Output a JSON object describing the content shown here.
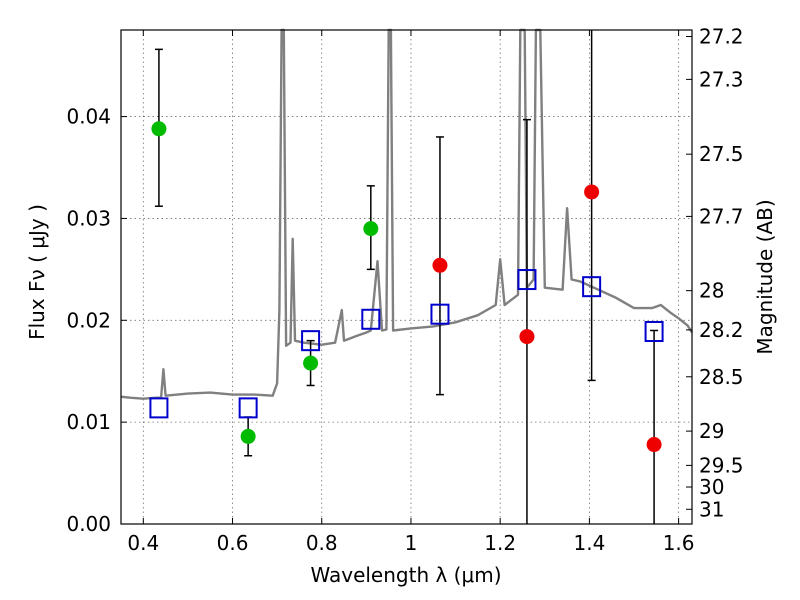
{
  "chart_data": {
    "type": "scatter",
    "title": "",
    "xlabel": "Wavelength  λ (μm)",
    "ylabel": "Flux  Fν  ( μJy )",
    "ylabel_right": "Magnitude (AB)",
    "xlim": [
      0.35,
      1.63
    ],
    "ylim": [
      0.0,
      0.0485
    ],
    "grid": true,
    "x_ticks": [
      0.4,
      0.6,
      0.8,
      1.0,
      1.2,
      1.4,
      1.6
    ],
    "x_tick_labels": [
      "0.4",
      "0.6",
      "0.8",
      "1",
      "1.2",
      "1.4",
      "1.6"
    ],
    "y_ticks": [
      0.0,
      0.01,
      0.02,
      0.03,
      0.04
    ],
    "y_tick_labels": [
      "0.00",
      "0.01",
      "0.02",
      "0.03",
      "0.04"
    ],
    "mag_ticks": [
      27.2,
      27.3,
      27.5,
      27.7,
      28,
      28.2,
      28.5,
      29,
      29.5,
      30,
      31
    ],
    "mag_tick_labels": [
      "27.2",
      "27.3",
      "27.5",
      "27.7",
      "28",
      "28.2",
      "28.5",
      "29",
      "29.5",
      "30",
      "31"
    ],
    "model_spectrum": {
      "color": "#808080",
      "points": [
        [
          0.35,
          0.0125
        ],
        [
          0.37,
          0.0124
        ],
        [
          0.4,
          0.0123
        ],
        [
          0.43,
          0.0124
        ],
        [
          0.44,
          0.0124
        ],
        [
          0.445,
          0.0152
        ],
        [
          0.45,
          0.0126
        ],
        [
          0.5,
          0.0128
        ],
        [
          0.55,
          0.0129
        ],
        [
          0.6,
          0.0127
        ],
        [
          0.65,
          0.0127
        ],
        [
          0.69,
          0.0126
        ],
        [
          0.7,
          0.0138
        ],
        [
          0.705,
          0.021
        ],
        [
          0.71,
          0.0485
        ],
        [
          0.715,
          0.0485
        ],
        [
          0.72,
          0.0175
        ],
        [
          0.73,
          0.0178
        ],
        [
          0.735,
          0.028
        ],
        [
          0.74,
          0.018
        ],
        [
          0.76,
          0.0178
        ],
        [
          0.8,
          0.0176
        ],
        [
          0.83,
          0.0178
        ],
        [
          0.845,
          0.021
        ],
        [
          0.85,
          0.018
        ],
        [
          0.88,
          0.0185
        ],
        [
          0.9,
          0.0188
        ],
        [
          0.91,
          0.019
        ],
        [
          0.925,
          0.0258
        ],
        [
          0.935,
          0.019
        ],
        [
          0.945,
          0.0191
        ],
        [
          0.95,
          0.0485
        ],
        [
          0.955,
          0.0485
        ],
        [
          0.96,
          0.019
        ],
        [
          1.0,
          0.0192
        ],
        [
          1.05,
          0.0194
        ],
        [
          1.1,
          0.0198
        ],
        [
          1.15,
          0.0205
        ],
        [
          1.19,
          0.0215
        ],
        [
          1.2,
          0.026
        ],
        [
          1.21,
          0.0215
        ],
        [
          1.24,
          0.0225
        ],
        [
          1.245,
          0.0485
        ],
        [
          1.255,
          0.0485
        ],
        [
          1.26,
          0.0232
        ],
        [
          1.275,
          0.024
        ],
        [
          1.28,
          0.0485
        ],
        [
          1.29,
          0.0485
        ],
        [
          1.3,
          0.0232
        ],
        [
          1.34,
          0.023
        ],
        [
          1.35,
          0.031
        ],
        [
          1.36,
          0.024
        ],
        [
          1.38,
          0.0238
        ],
        [
          1.42,
          0.023
        ],
        [
          1.46,
          0.0222
        ],
        [
          1.5,
          0.0212
        ],
        [
          1.54,
          0.0212
        ],
        [
          1.56,
          0.0215
        ],
        [
          1.58,
          0.0208
        ],
        [
          1.6,
          0.0202
        ],
        [
          1.62,
          0.0195
        ],
        [
          1.63,
          0.0188
        ]
      ]
    },
    "series": [
      {
        "marker": "circle",
        "color": "#00bb00",
        "points": [
          {
            "x": 0.435,
            "y": 0.0388,
            "err": [
              0.0312,
              0.0466
            ]
          },
          {
            "x": 0.635,
            "y": 0.0086,
            "err": [
              0.0067,
              0.0105
            ]
          },
          {
            "x": 0.775,
            "y": 0.0158,
            "err": [
              0.0136,
              0.018
            ]
          },
          {
            "x": 0.91,
            "y": 0.029,
            "err": [
              0.025,
              0.0332
            ]
          }
        ]
      },
      {
        "marker": "circle",
        "color": "#ee0000",
        "points": [
          {
            "x": 1.065,
            "y": 0.0254,
            "err": [
              0.0127,
              0.038
            ]
          },
          {
            "x": 1.26,
            "y": 0.0184,
            "err": [
              0.0,
              0.0397
            ]
          },
          {
            "x": 1.405,
            "y": 0.0326,
            "err": [
              0.0141,
              0.0485
            ]
          },
          {
            "x": 1.545,
            "y": 0.0078,
            "err": [
              0.0,
              0.019
            ]
          }
        ]
      },
      {
        "marker": "square",
        "color": "#0000cc",
        "points": [
          {
            "x": 0.435,
            "y": 0.0114
          },
          {
            "x": 0.635,
            "y": 0.0114
          },
          {
            "x": 0.775,
            "y": 0.018
          },
          {
            "x": 0.91,
            "y": 0.0201
          },
          {
            "x": 1.065,
            "y": 0.0206
          },
          {
            "x": 1.26,
            "y": 0.024
          },
          {
            "x": 1.405,
            "y": 0.0233
          },
          {
            "x": 1.545,
            "y": 0.0189
          }
        ]
      }
    ]
  }
}
